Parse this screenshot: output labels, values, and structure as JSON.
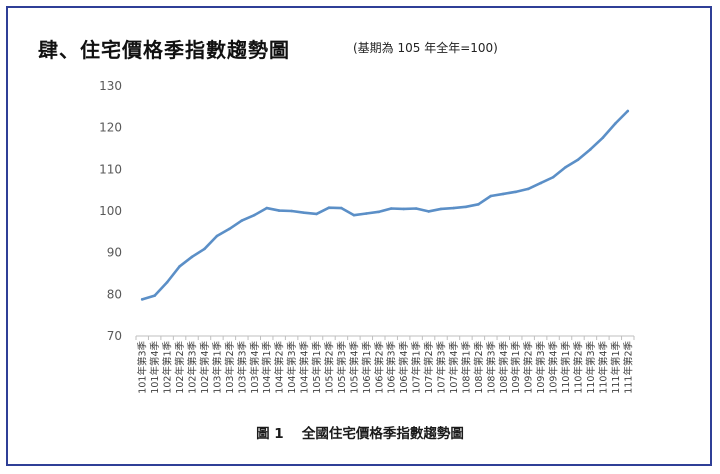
{
  "title": "肆、住宅價格季指數趨勢圖",
  "subtitle": "(基期為 105 年全年=100)",
  "caption": "圖 1　 全國住宅價格季指數趨勢圖",
  "colors": {
    "line": "#5b8fc7",
    "frame": "#2f3f97",
    "axis": "#bfbfbf"
  },
  "chart_data": {
    "type": "line",
    "title": "肆、住宅價格季指數趨勢圖",
    "subtitle": "(基期為 105 年全年=100)",
    "xlabel": "",
    "ylabel": "",
    "ylim": [
      70,
      130
    ],
    "yticks": [
      70,
      80,
      90,
      100,
      110,
      120,
      130
    ],
    "grid": false,
    "legend": "none",
    "categories": [
      "101年第3季",
      "101年第4季",
      "102年第1季",
      "102年第2季",
      "102年第3季",
      "102年第4季",
      "103年第1季",
      "103年第2季",
      "103年第3季",
      "103年第4季",
      "104年第1季",
      "104年第2季",
      "104年第3季",
      "104年第4季",
      "105年第1季",
      "105年第2季",
      "105年第3季",
      "105年第4季",
      "106年第1季",
      "106年第2季",
      "106年第3季",
      "106年第4季",
      "107年第1季",
      "107年第2季",
      "107年第3季",
      "107年第4季",
      "108年第1季",
      "108年第2季",
      "108年第3季",
      "108年第4季",
      "109年第1季",
      "109年第2季",
      "109年第3季",
      "109年第4季",
      "110年第1季",
      "110年第2季",
      "110年第3季",
      "110年第4季",
      "111年第1季",
      "111年第2季"
    ],
    "values": [
      78.8,
      79.7,
      82.9,
      86.7,
      89.0,
      90.9,
      94.0,
      95.7,
      97.7,
      99.0,
      100.7,
      100.1,
      100.0,
      99.6,
      99.3,
      100.8,
      100.7,
      99.0,
      99.4,
      99.8,
      100.6,
      100.5,
      100.6,
      99.9,
      100.5,
      100.7,
      101.0,
      101.6,
      103.6,
      104.1,
      104.6,
      105.3,
      106.7,
      108.1,
      110.5,
      112.3,
      114.8,
      117.6,
      121.0,
      124.0
    ]
  }
}
